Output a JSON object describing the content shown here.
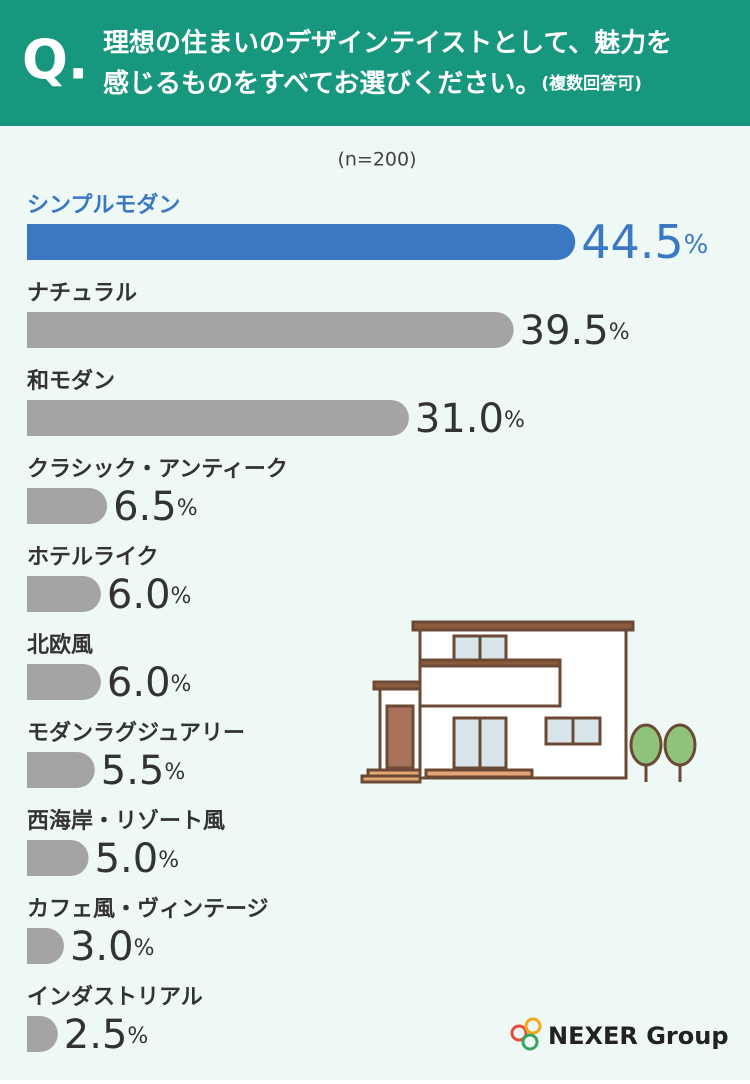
{
  "header": {
    "marker": "Q.",
    "question": "理想の住まいのデザインテイストとして、魅力を",
    "question_line2": "感じるものをすべてお選びください。",
    "note": "(複数回答可)"
  },
  "chart_data": {
    "type": "bar",
    "orientation": "horizontal",
    "subtitle": "(n=200)",
    "categories": [
      "シンプルモダン",
      "ナチュラル",
      "和モダン",
      "クラシック・アンティーク",
      "ホテルライク",
      "北欧風",
      "モダンラグジュアリー",
      "西海岸・リゾート風",
      "カフェ風・ヴィンテージ",
      "インダストリアル"
    ],
    "values": [
      44.5,
      39.5,
      31.0,
      6.5,
      6.0,
      6.0,
      5.5,
      5.0,
      3.0,
      2.5
    ],
    "value_labels": [
      "44.5%",
      "39.5%",
      "31.0%",
      "6.5%",
      "6.0%",
      "6.0%",
      "5.5%",
      "5.0%",
      "3.0%",
      "2.5%"
    ],
    "colors": [
      "#3a78c4",
      "#a4a4a7",
      "#a4a4a7",
      "#a4a4a7",
      "#a4a4a7",
      "#a4a4a7",
      "#a4a4a7",
      "#a4a4a7",
      "#a4a4a7",
      "#a4a4a7"
    ]
  },
  "logo": "NEXER Group"
}
